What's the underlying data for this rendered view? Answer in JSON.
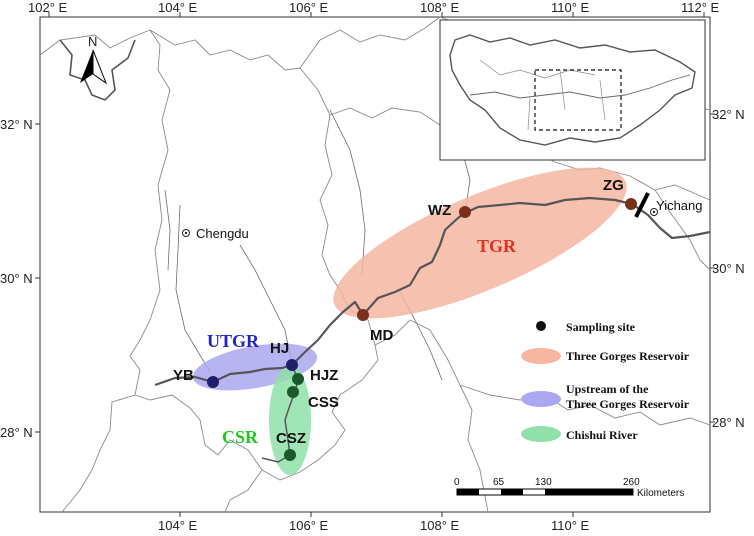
{
  "colors": {
    "tgr_fill": "#f6b6a1",
    "utgr_fill": "#a9a8f0",
    "csr_fill": "#8fe0a9",
    "tgr_label": "#e0301e",
    "utgr_label": "#2323c0",
    "csr_label": "#1ec81e",
    "dot_tgr": "#7a2e1c",
    "dot_utgr": "#1e1e6a",
    "dot_csr": "#1a5a2a",
    "river": "#555555",
    "boundary": "#8a8a8a"
  },
  "axes": {
    "top": [
      "102° E",
      "104° E",
      "106° E",
      "108° E",
      "110° E",
      "112° E"
    ],
    "bottom": [
      "104° E",
      "106° E",
      "108° E",
      "110° E"
    ],
    "left": [
      "32° N",
      "30° N",
      "28° N"
    ],
    "right": [
      "32° N",
      "30° N",
      "28° N"
    ]
  },
  "north": {
    "label": "N",
    "icon": "north-arrow-icon"
  },
  "cities": {
    "chengdu": "Chengdu",
    "yichang": "Yichang"
  },
  "sites": {
    "zg": "ZG",
    "wz": "WZ",
    "md": "MD",
    "hj": "HJ",
    "yb": "YB",
    "hjz": "HJZ",
    "css": "CSS",
    "csz": "CSZ"
  },
  "regions": {
    "tgr": "TGR",
    "utgr": "UTGR",
    "csr": "CSR"
  },
  "legend": {
    "sampling_site": "Sampling site",
    "tgr": "Three Gorges Reservoir",
    "utgr_line1": "Upstream of the",
    "utgr_line2": "Three Gorges Reservoir",
    "csr": "Chishui River"
  },
  "scale": {
    "ticks": [
      "0",
      "65",
      "130",
      "260"
    ],
    "unit": "Kilometers"
  }
}
